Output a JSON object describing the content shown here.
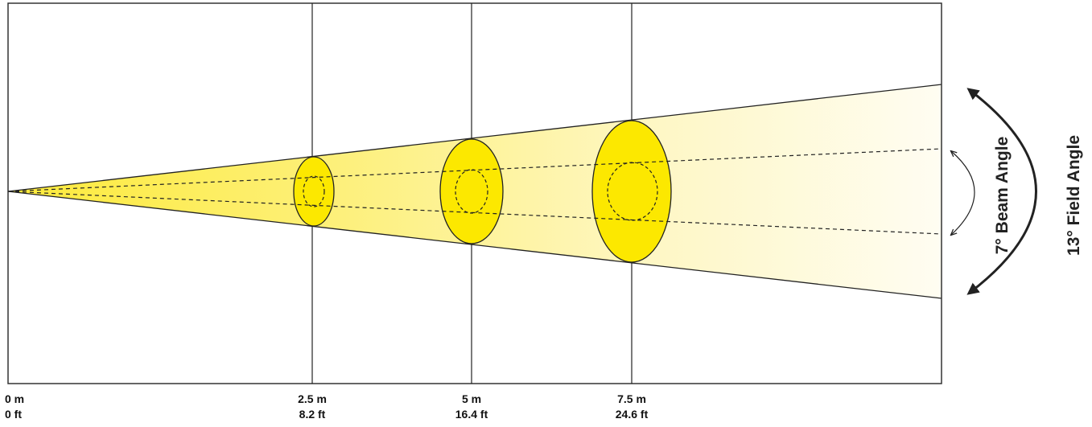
{
  "diagram": {
    "beam_angle_label": "7° Beam Angle",
    "field_angle_label": "13° Field Angle",
    "colors": {
      "beam_fill": "#fcec00",
      "field_fill_start": "#fdec60",
      "field_fill_end": "#ffffff",
      "line": "#111111"
    },
    "distances": [
      {
        "meters": "0 m",
        "feet": "0 ft"
      },
      {
        "meters": "2.5 m",
        "feet": "8.2 ft"
      },
      {
        "meters": "5 m",
        "feet": "16.4 ft"
      },
      {
        "meters": "7.5 m",
        "feet": "24.6 ft"
      }
    ]
  }
}
